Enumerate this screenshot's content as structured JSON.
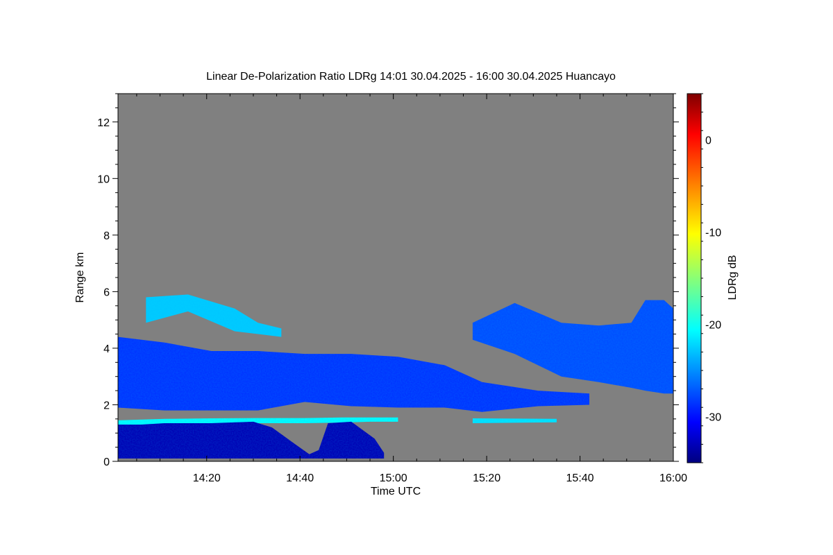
{
  "chart_data": {
    "type": "heatmap",
    "title": "Linear De-Polarization Ratio LDRg   14:01 30.04.2025 - 16:00 30.04.2025 Huancayo",
    "xlabel": "Time UTC",
    "ylabel": "Range km",
    "colorbar_label": "LDRg dB",
    "x_range_minutes": [
      0,
      119
    ],
    "x_ticks": [
      {
        "label": "14:20",
        "t": 19
      },
      {
        "label": "14:40",
        "t": 39
      },
      {
        "label": "15:00",
        "t": 59
      },
      {
        "label": "15:20",
        "t": 79
      },
      {
        "label": "15:40",
        "t": 99
      },
      {
        "label": "16:00",
        "t": 119
      }
    ],
    "ylim": [
      0,
      13
    ],
    "y_ticks": [
      0,
      2,
      4,
      6,
      8,
      10,
      12
    ],
    "clim": [
      -35,
      5
    ],
    "c_ticks": [
      0,
      -10,
      -20,
      -30
    ],
    "background_color": "#808080",
    "colormap": "jet",
    "layers": [
      {
        "name": "upper cirrus band",
        "t": [
          6,
          15,
          25,
          30,
          35
        ],
        "bottom": [
          4.9,
          5.3,
          4.6,
          4.5,
          4.4
        ],
        "top": [
          5.8,
          5.9,
          5.4,
          4.9,
          4.7
        ],
        "ldr": -22
      },
      {
        "name": "mid cloud deck",
        "t": [
          0,
          10,
          20,
          30,
          40,
          50,
          60,
          70,
          78,
          90,
          101
        ],
        "bottom": [
          1.9,
          1.8,
          1.8,
          1.8,
          2.1,
          1.95,
          1.9,
          1.9,
          1.75,
          1.95,
          2.0
        ],
        "top": [
          4.4,
          4.2,
          3.9,
          3.9,
          3.8,
          3.8,
          3.7,
          3.4,
          2.8,
          2.5,
          2.4
        ],
        "ldr": -28
      },
      {
        "name": "right cloud",
        "t": [
          76,
          85,
          95,
          103,
          110,
          113,
          117,
          119
        ],
        "bottom": [
          4.3,
          3.8,
          3.0,
          2.8,
          2.6,
          2.5,
          2.4,
          2.4
        ],
        "top": [
          4.9,
          5.6,
          4.9,
          4.8,
          4.9,
          5.7,
          5.7,
          5.4
        ],
        "ldr": -27
      },
      {
        "name": "thin layer",
        "t": [
          0,
          10,
          20,
          30,
          40,
          48,
          54,
          60
        ],
        "bottom": [
          1.25,
          1.28,
          1.3,
          1.35,
          1.35,
          1.37,
          1.4,
          1.4
        ],
        "top": [
          1.45,
          1.5,
          1.52,
          1.53,
          1.53,
          1.55,
          1.55,
          1.55
        ],
        "ldr": -20
      },
      {
        "name": "thin layer 2",
        "t": [
          76,
          94
        ],
        "bottom": [
          1.35,
          1.38
        ],
        "top": [
          1.52,
          1.5
        ],
        "ldr": -21
      },
      {
        "name": "boundary layer",
        "t": [
          0,
          5,
          10,
          20,
          29,
          33,
          38,
          41,
          43,
          45,
          50,
          55,
          57
        ],
        "bottom": [
          0.1,
          0.1,
          0.1,
          0.1,
          0.1,
          0.1,
          0.1,
          0.1,
          0.1,
          0.1,
          0.1,
          0.1,
          0.1
        ],
        "top": [
          1.3,
          1.3,
          1.35,
          1.35,
          1.4,
          1.2,
          0.6,
          0.25,
          0.4,
          1.35,
          1.4,
          0.8,
          0.3
        ],
        "ldr": -33
      }
    ]
  }
}
